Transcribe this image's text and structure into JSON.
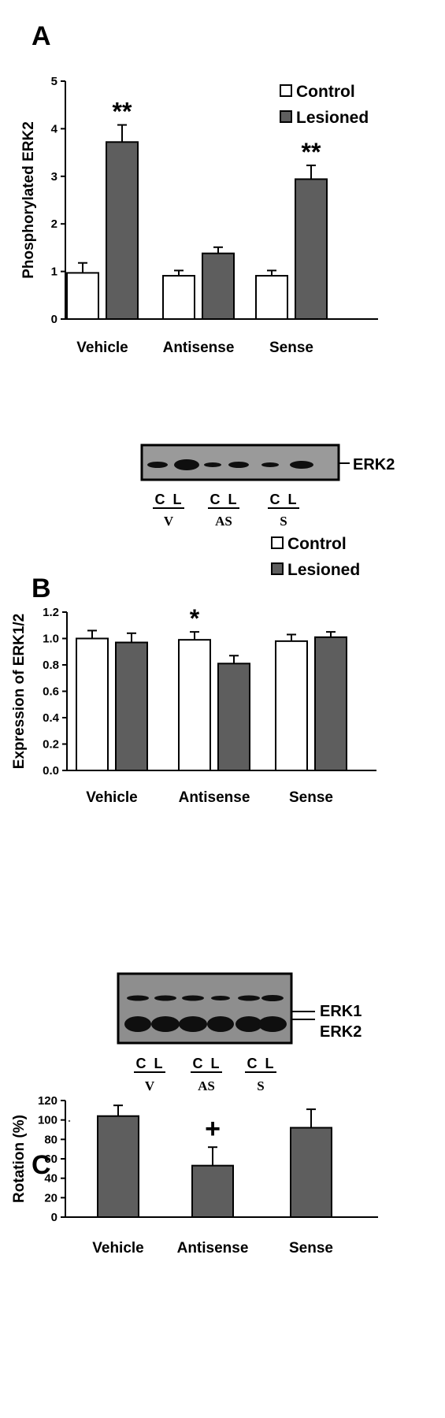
{
  "chart_data": [
    {
      "panel": "A",
      "type": "bar",
      "ylabel": "Phosphorylated ERK2",
      "ylim": [
        0,
        5
      ],
      "yticks": [
        "0",
        "1",
        "2",
        "3",
        "4",
        "5"
      ],
      "categories": [
        "Vehicle",
        "Antisense",
        "Sense"
      ],
      "legend": {
        "placement": "top-right",
        "entries": [
          "Control",
          "Lesioned"
        ]
      },
      "series": [
        {
          "name": "Control",
          "color": "#ffffff",
          "values": [
            0.97,
            0.91,
            0.91
          ],
          "errors": [
            0.21,
            0.11,
            0.11
          ]
        },
        {
          "name": "Lesioned",
          "color": "#5e5e5e",
          "values": [
            3.72,
            1.38,
            2.94
          ],
          "errors": [
            0.36,
            0.13,
            0.29
          ]
        }
      ],
      "annotations": [
        "**",
        "",
        "**"
      ],
      "blot": {
        "bands": [
          "ERK2"
        ],
        "lanes": [
          "C",
          "L"
        ],
        "groups": [
          "V",
          "AS",
          "S"
        ]
      }
    },
    {
      "panel": "B",
      "type": "bar",
      "ylabel": "Expression of ERK1/2",
      "ylim": [
        0,
        1.2
      ],
      "yticks": [
        "0.0",
        "0.2",
        "0.4",
        "0.6",
        "0.8",
        "1.0",
        "1.2"
      ],
      "categories": [
        "Vehicle",
        "Antisense",
        "Sense"
      ],
      "legend": {
        "placement": "top-right",
        "entries": [
          "Control",
          "Lesioned"
        ]
      },
      "series": [
        {
          "name": "Control",
          "color": "#ffffff",
          "values": [
            1.0,
            0.99,
            0.98
          ],
          "errors": [
            0.06,
            0.06,
            0.05
          ]
        },
        {
          "name": "Lesioned",
          "color": "#5e5e5e",
          "values": [
            0.97,
            0.81,
            1.01
          ],
          "errors": [
            0.07,
            0.06,
            0.04
          ]
        }
      ],
      "annotations": [
        "",
        "*",
        ""
      ],
      "blot": {
        "bands": [
          "ERK1",
          "ERK2"
        ],
        "lanes": [
          "C",
          "L"
        ],
        "groups": [
          "V",
          "AS",
          "S"
        ]
      }
    },
    {
      "panel": "C",
      "type": "bar",
      "ylabel": "Rotation (%)",
      "ylim": [
        0,
        120
      ],
      "yticks": [
        "0",
        "20",
        "40",
        "60",
        "80",
        "100",
        "120"
      ],
      "categories": [
        "Vehicle",
        "Antisense",
        "Sense"
      ],
      "series": [
        {
          "color": "#5e5e5e",
          "values": [
            104,
            53,
            92
          ],
          "errors": [
            11,
            19,
            19
          ]
        }
      ],
      "annotations": [
        "",
        "+",
        ""
      ]
    }
  ]
}
